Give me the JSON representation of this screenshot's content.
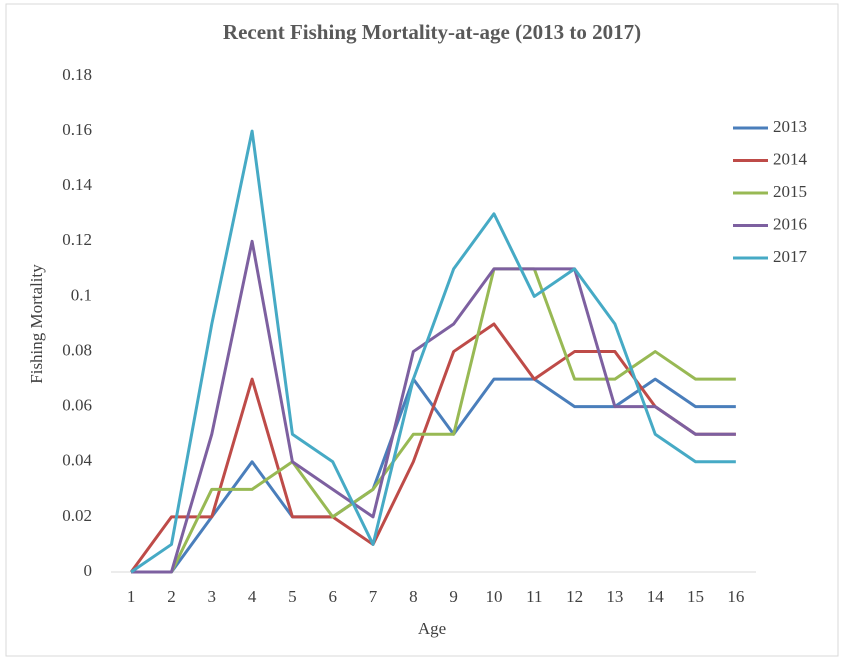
{
  "chart_data": {
    "type": "line",
    "title": "Recent Fishing Mortality-at-age (2013 to 2017)",
    "x_label": "Age",
    "y_label": "Fishing  Mortality",
    "categories": [
      "1",
      "2",
      "3",
      "4",
      "5",
      "6",
      "7",
      "8",
      "9",
      "10",
      "11",
      "12",
      "13",
      "14",
      "15",
      "16"
    ],
    "series": [
      {
        "name": "2013",
        "color": "#4a7ebb",
        "values": [
          0,
          0,
          0.02,
          0.04,
          0.02,
          0.02,
          0.03,
          0.07,
          0.05,
          0.07,
          0.07,
          0.06,
          0.06,
          0.07,
          0.06,
          0.06
        ]
      },
      {
        "name": "2014",
        "color": "#be4b48",
        "values": [
          0,
          0.02,
          0.02,
          0.07,
          0.02,
          0.02,
          0.01,
          0.04,
          0.08,
          0.09,
          0.07,
          0.08,
          0.08,
          0.06,
          0.05,
          0.05
        ]
      },
      {
        "name": "2015",
        "color": "#98b954",
        "values": [
          0,
          0,
          0.03,
          0.03,
          0.04,
          0.02,
          0.03,
          0.05,
          0.05,
          0.11,
          0.11,
          0.07,
          0.07,
          0.08,
          0.07,
          0.07
        ]
      },
      {
        "name": "2016",
        "color": "#7d60a0",
        "values": [
          0,
          0,
          0.05,
          0.12,
          0.04,
          0.03,
          0.02,
          0.08,
          0.09,
          0.11,
          0.11,
          0.11,
          0.06,
          0.06,
          0.05,
          0.05
        ]
      },
      {
        "name": "2017",
        "color": "#46aac5",
        "values": [
          0,
          0.01,
          0.09,
          0.16,
          0.05,
          0.04,
          0.01,
          0.07,
          0.11,
          0.13,
          0.1,
          0.11,
          0.09,
          0.05,
          0.04,
          0.04
        ]
      }
    ],
    "ylim": [
      0,
      0.18
    ],
    "yticks": [
      0,
      0.02,
      0.04,
      0.06,
      0.08,
      0.1,
      0.12,
      0.14,
      0.16,
      0.18
    ],
    "grid": false,
    "legend": "right"
  }
}
